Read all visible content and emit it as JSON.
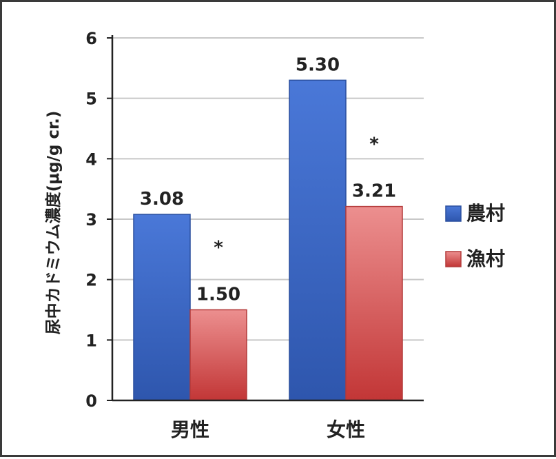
{
  "chart_data": {
    "type": "bar",
    "categories": [
      "男性",
      "女性"
    ],
    "series": [
      {
        "name": "農村",
        "values": [
          3.08,
          5.3
        ],
        "labels": [
          "3.08",
          "5.30"
        ],
        "color": "#3f6fcf"
      },
      {
        "name": "漁村",
        "values": [
          1.5,
          3.21
        ],
        "labels": [
          "1.50",
          "3.21"
        ],
        "color": "#d9534f"
      }
    ],
    "significance": [
      "*",
      "*"
    ],
    "ylabel": "尿中カドミウム濃度(μg/g cr.)",
    "ylim": [
      0,
      6
    ],
    "yticks": [
      "0",
      "1",
      "2",
      "3",
      "4",
      "5",
      "6"
    ],
    "grid": true,
    "legend": "right"
  }
}
